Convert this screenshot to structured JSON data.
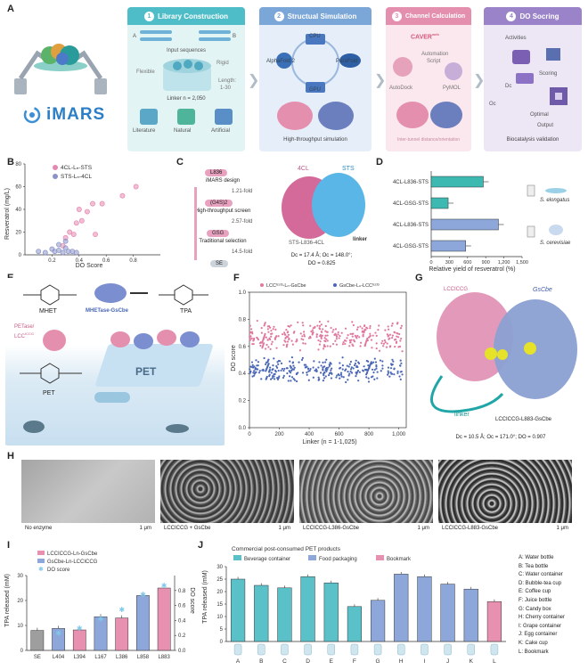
{
  "panelA": {
    "label": "A",
    "logo": "iMARS",
    "stages": [
      {
        "num": "1",
        "title": "Library Construction",
        "color": "#4fbdc7"
      },
      {
        "num": "2",
        "title": "Structual Simulation",
        "color": "#7aa6d8"
      },
      {
        "num": "3",
        "title": "Channel Calculation",
        "color": "#e58fae"
      },
      {
        "num": "4",
        "title": "DO Socring",
        "color": "#9b83c9"
      }
    ],
    "s1": {
      "a": "A",
      "b": "B",
      "input": "Input sequences",
      "flexible": "Flexible",
      "rigid": "Rigid",
      "length": "Length:",
      "range": "1-30",
      "linker": "Linker n = 2,050",
      "sources": [
        "Literature",
        "Natural",
        "Artificial"
      ]
    },
    "s2": {
      "cpu": "CPU",
      "alphafold": "AlphaFold 2",
      "parafold": "ParaFold",
      "gpu": "GPU",
      "footer": "High-throughput simulation"
    },
    "s3": {
      "caver": "CAVER",
      "caver_sup": "web",
      "automation": "Automation",
      "script": "Script",
      "autodock": "AutoDock",
      "pymol": "PyMOL",
      "footer": "Inter-tunnel distance/orientation"
    },
    "s4": {
      "activities": "Activities",
      "scoring": "Scoring",
      "dc": "Dc",
      "oc": "Oc",
      "optimal": "Optimal",
      "output": "Output",
      "footer": "Biocatalysis validation"
    }
  },
  "panelB": {
    "label": "B",
    "ylabel": "Resveratrol (mg/L)",
    "xlabel": "DO Score",
    "legend": [
      "4CL-Lₙ-STS",
      "STS-Lₙ-4CL"
    ]
  },
  "panelC": {
    "label": "C",
    "steps": [
      "L836",
      "iMARS design",
      "1.21-fold",
      "(G4S)2",
      "High-throughput screen",
      "2.57-fold",
      "GSG",
      "Traditional selection",
      "14.5-fold",
      "SE"
    ],
    "protein1": "4CL",
    "protein2": "STS",
    "linker": "linker",
    "construct": "STS-L836-4CL",
    "metrics1": "Dc = 17.4 Å; Oc = 148.0°;",
    "metrics2": "DO = 0.825"
  },
  "panelD": {
    "label": "D",
    "xlabel": "Relative yield of resveratrol (%)",
    "organisms": [
      "S. elongatus",
      "S. cerevisiae"
    ]
  },
  "panelE": {
    "label": "E",
    "mhet": "MHET",
    "enzyme": "MHETase-GsCbe",
    "tpa": "TPA",
    "petase": "PETase/",
    "lcc": "LCC",
    "lcc_sup": "ICCG",
    "pet": "PET",
    "film": "PET"
  },
  "panelF": {
    "label": "F",
    "ylabel": "DO score",
    "xlabel": "Linker (n = 1-1,025)",
    "legend": [
      "LCCᴵᶜᶜᴳ-Lₙ-GsCbe",
      "GsCbe-Lₙ-LCCᴵᶜᶜᴳ"
    ]
  },
  "panelG": {
    "label": "G",
    "lcc": "LCCICCG",
    "gscbe": "GsCbe",
    "linker": "linker",
    "construct": "LCCICCG-L883-GsCbe",
    "metrics": "Dc = 10.5 Å; Oc = 171.0°; DO = 0.907"
  },
  "panelH": {
    "label": "H",
    "images": [
      {
        "caption": "No enzyme",
        "scale": "1 μm"
      },
      {
        "caption": "LCCICCG + GsCbe",
        "scale": "1 μm"
      },
      {
        "caption": "LCCICCG-L386-GsCbe",
        "scale": "1 μm"
      },
      {
        "caption": "LCCICCG-L883-GsCbe",
        "scale": "1 μm"
      }
    ]
  },
  "panelI": {
    "label": "I",
    "ylabel": "TPA released (mM)",
    "y2label": "DO score",
    "legend": [
      "LCCICCG-Ln-GsCbe",
      "GsCbe-Ln-LCCICCG",
      "DO score"
    ]
  },
  "panelJ": {
    "label": "J",
    "title": "Commercial post-consumed PET products",
    "ylabel": "TPA released (mM)",
    "legend": [
      "Beverage container",
      "Food packaging",
      "Bookmark"
    ],
    "key": [
      "A: Water bottle",
      "B: Tea bottle",
      "C: Water container",
      "D: Bubble-tea cup",
      "E: Coffee cup",
      "F: Juice bottle",
      "G: Candy box",
      "H: Cherry container",
      "I: Grape container",
      "J: Egg container",
      "K: Cake cup",
      "L: Bookmark"
    ]
  },
  "chart_data": [
    {
      "type": "scatter",
      "id": "B",
      "xlabel": "DO Score",
      "ylabel": "Resveratrol (mg/L)",
      "xlim": [
        0,
        1.0
      ],
      "ylim": [
        0,
        80
      ],
      "xticks": [
        0.2,
        0.4,
        0.6,
        0.8
      ],
      "yticks": [
        0,
        20,
        40,
        60,
        80
      ],
      "series": [
        {
          "name": "4CL-Ln-STS",
          "color": "#e588b0",
          "x": [
            0.82,
            0.72,
            0.57,
            0.5,
            0.46,
            0.4,
            0.38,
            0.36,
            0.33,
            0.3,
            0.28,
            0.42,
            0.52
          ],
          "y": [
            60,
            52,
            45,
            45,
            38,
            40,
            28,
            18,
            20,
            15,
            8,
            30,
            18
          ]
        },
        {
          "name": "STS-Ln-4CL",
          "color": "#8a93c8",
          "x": [
            0.1,
            0.15,
            0.2,
            0.22,
            0.25,
            0.28,
            0.3,
            0.32,
            0.35,
            0.38,
            0.25,
            0.3
          ],
          "y": [
            3,
            2,
            5,
            3,
            4,
            2,
            6,
            3,
            3,
            2,
            9,
            12
          ]
        }
      ]
    },
    {
      "type": "bar",
      "id": "D",
      "orientation": "horizontal",
      "categories": [
        "4CL-L836-STS",
        "4CL-GSG-STS",
        "4CL-L836-STS",
        "4CL-GSG-STS"
      ],
      "values": [
        860,
        280,
        1110,
        570
      ],
      "xlabel": "Relative yield of resveratrol (%)",
      "xlim": [
        0,
        1500
      ],
      "xticks": [
        0,
        300,
        600,
        900,
        1200,
        1500
      ]
    },
    {
      "type": "scatter",
      "id": "F",
      "xlabel": "Linker (n = 1-1,025)",
      "ylabel": "DO score",
      "xlim": [
        0,
        1050
      ],
      "ylim": [
        0,
        1.0
      ],
      "xticks": [
        0,
        200,
        400,
        600,
        800,
        1000
      ],
      "yticks": [
        0,
        0.2,
        0.4,
        0.6,
        0.8,
        1.0
      ],
      "series": [
        {
          "name": "LCCICCG-Ln-GsCbe",
          "color": "#e0789d",
          "mean": 0.68,
          "spread": 0.12
        },
        {
          "name": "GsCbe-Ln-LCCICCG",
          "color": "#4a67b5",
          "mean": 0.43,
          "spread": 0.1
        }
      ]
    },
    {
      "type": "bar",
      "id": "I",
      "categories": [
        "SE",
        "L404",
        "L394",
        "L167",
        "L386",
        "L858",
        "L883"
      ],
      "values": [
        8,
        8.8,
        8.2,
        13.5,
        13,
        22,
        25
      ],
      "colors": [
        "#9e9e9e",
        "#8ea7da",
        "#e890b0",
        "#8ea7da",
        "#e890b0",
        "#8ea7da",
        "#e890b0"
      ],
      "do_score": [
        0,
        0.23,
        0.3,
        0.42,
        0.55,
        0.75,
        0.87
      ],
      "ylabel": "TPA released (mM)",
      "ylim": [
        0,
        30
      ],
      "yticks": [
        0,
        10,
        20,
        30
      ],
      "y2label": "DO score",
      "y2lim": [
        0,
        1.0
      ],
      "y2ticks": [
        0,
        0.2,
        0.4,
        0.6,
        0.8
      ]
    },
    {
      "type": "bar",
      "id": "J",
      "categories": [
        "A",
        "B",
        "C",
        "D",
        "E",
        "F",
        "G",
        "H",
        "I",
        "J",
        "K",
        "L"
      ],
      "values": [
        25,
        22.5,
        21.5,
        26,
        23.5,
        14,
        16.5,
        27,
        26,
        23,
        21,
        16
      ],
      "groups": [
        "Beverage container",
        "Beverage container",
        "Beverage container",
        "Beverage container",
        "Beverage container",
        "Beverage container",
        "Food packaging",
        "Food packaging",
        "Food packaging",
        "Food packaging",
        "Food packaging",
        "Bookmark"
      ],
      "ylabel": "TPA released (mM)",
      "ylim": [
        0,
        30
      ],
      "yticks": [
        0,
        5,
        10,
        15,
        20,
        25,
        30
      ]
    }
  ]
}
